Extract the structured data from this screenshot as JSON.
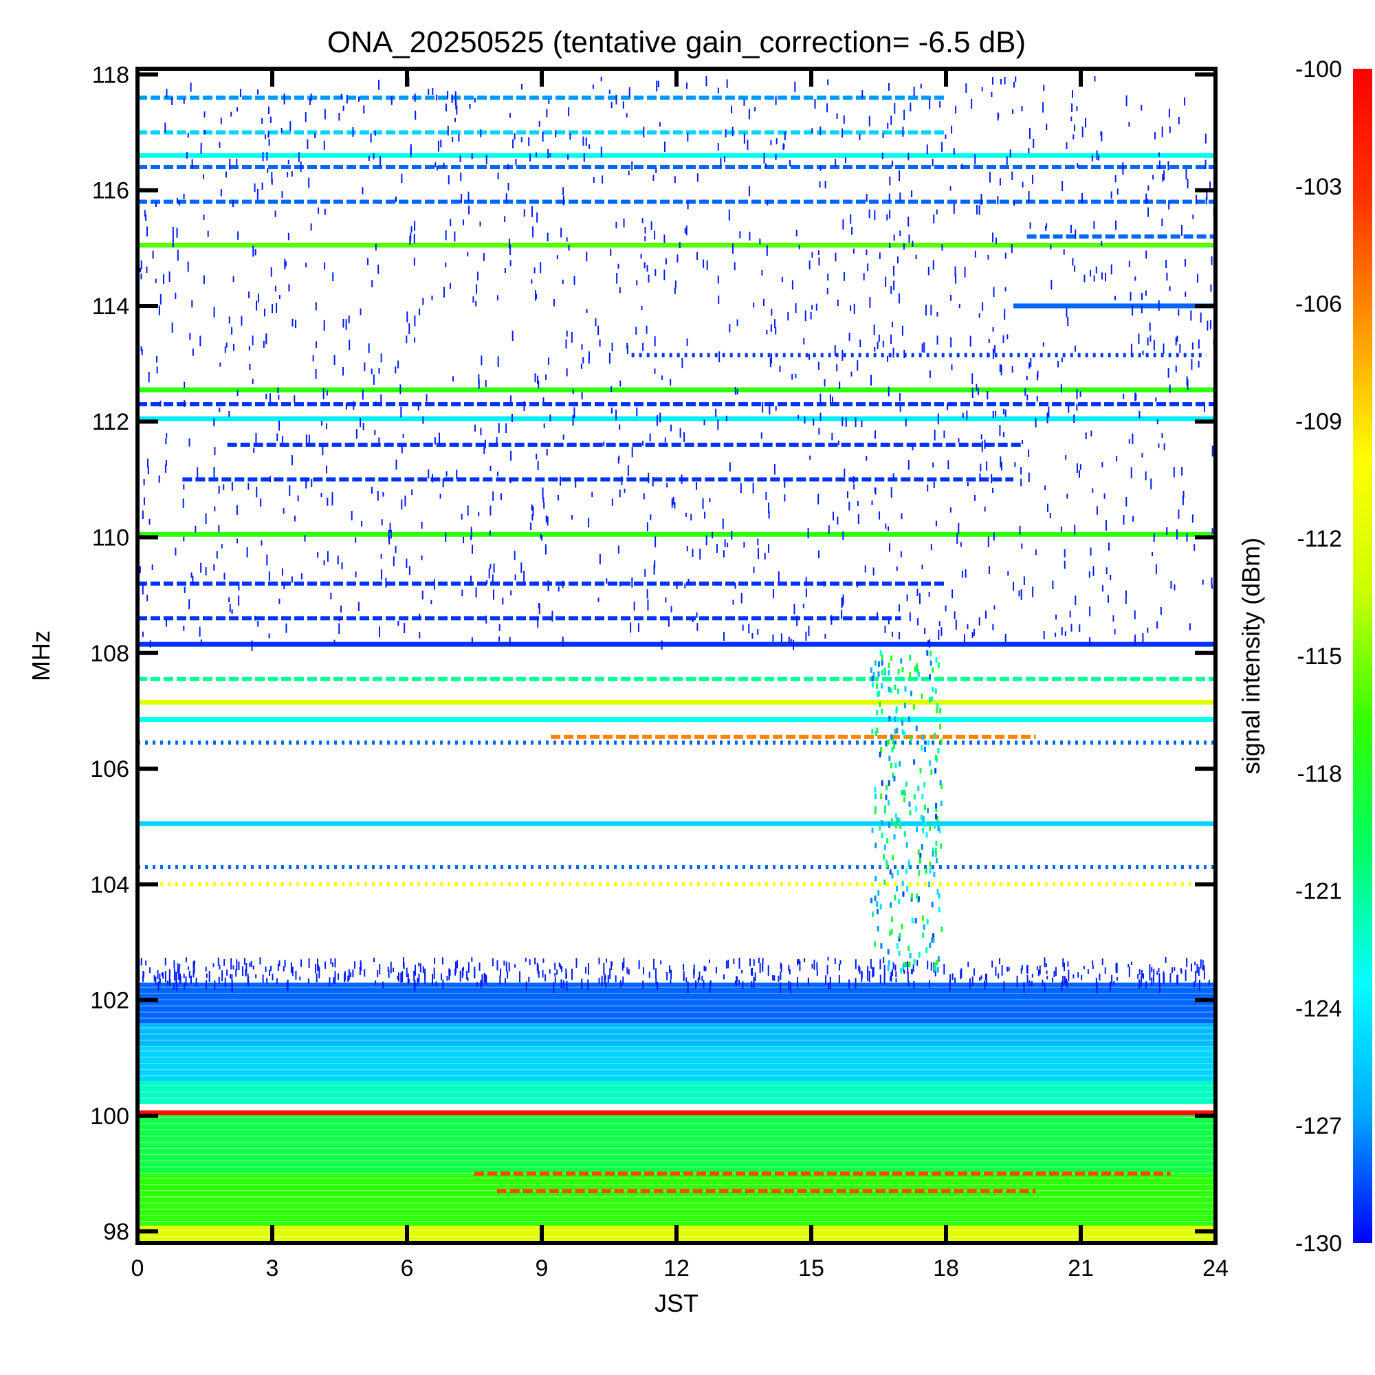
{
  "chart_data": {
    "type": "heatmap",
    "title": "ONA_20250525 (tentative gain_correction= -6.5 dB)",
    "xlabel": "JST",
    "ylabel": "MHz",
    "colorbar_label": "signal intensity (dBm)",
    "xlim": [
      0,
      24
    ],
    "ylim": [
      97.8,
      118.1
    ],
    "xticks": [
      0,
      3,
      6,
      9,
      12,
      15,
      18,
      21,
      24
    ],
    "xtick_labels": [
      "0",
      "3",
      "6",
      "9",
      "12",
      "15",
      "18",
      "21",
      "24"
    ],
    "yticks": [
      98,
      100,
      102,
      104,
      106,
      108,
      110,
      112,
      114,
      116,
      118
    ],
    "ytick_labels": [
      "98",
      "100",
      "102",
      "104",
      "106",
      "108",
      "110",
      "112",
      "114",
      "116",
      "118"
    ],
    "color_range": [
      -130,
      -100
    ],
    "colorbar_ticks": [
      -100,
      -103,
      -106,
      -109,
      -112,
      -115,
      -118,
      -121,
      -124,
      -127,
      -130
    ],
    "colorbar_tick_labels": [
      "-100",
      "-103",
      "-106",
      "-109",
      "-112",
      "-115",
      "-118",
      "-121",
      "-124",
      "-127",
      "-130"
    ],
    "colormap": [
      "#0000ff",
      "#00aaff",
      "#00ffff",
      "#00ff66",
      "#33ff00",
      "#ccff00",
      "#ffff00",
      "#ff9900",
      "#ff3300",
      "#ff0000"
    ],
    "background_level": -130,
    "bands": [
      {
        "f_start": 97.8,
        "f_end": 98.1,
        "level": -112,
        "pattern": "solid"
      },
      {
        "f_start": 98.1,
        "f_end": 99.0,
        "level": -117,
        "pattern": "solid"
      },
      {
        "f_start": 99.0,
        "f_end": 100.05,
        "level": -119,
        "pattern": "solid"
      },
      {
        "f_start": 100.2,
        "f_end": 100.6,
        "level": -122,
        "pattern": "solid"
      },
      {
        "f_start": 100.6,
        "f_end": 101.2,
        "level": -125,
        "pattern": "solid"
      },
      {
        "f_start": 101.2,
        "f_end": 101.6,
        "level": -126,
        "pattern": "solid"
      },
      {
        "f_start": 101.6,
        "f_end": 102.3,
        "level": -128,
        "pattern": "solid"
      }
    ],
    "lines": [
      {
        "freq": 100.05,
        "level": -101,
        "t_start": 0,
        "t_end": 24,
        "pattern": "solid"
      },
      {
        "freq": 99.0,
        "level": -104,
        "t_start": 7.5,
        "t_end": 23.0,
        "pattern": "dashed"
      },
      {
        "freq": 98.7,
        "level": -104,
        "t_start": 8.0,
        "t_end": 20.0,
        "pattern": "dashed"
      },
      {
        "freq": 104.0,
        "level": -110,
        "t_start": 0,
        "t_end": 24,
        "pattern": "dotted"
      },
      {
        "freq": 104.3,
        "level": -128,
        "t_start": 0,
        "t_end": 24,
        "pattern": "dotted"
      },
      {
        "freq": 105.05,
        "level": -125,
        "t_start": 0,
        "t_end": 24,
        "pattern": "solid"
      },
      {
        "freq": 106.45,
        "level": -128,
        "t_start": 0,
        "t_end": 24,
        "pattern": "dotted"
      },
      {
        "freq": 106.55,
        "level": -106,
        "t_start": 9.2,
        "t_end": 20.0,
        "pattern": "dashed"
      },
      {
        "freq": 106.85,
        "level": -123,
        "t_start": 0,
        "t_end": 24,
        "pattern": "solid"
      },
      {
        "freq": 107.15,
        "level": -112,
        "t_start": 0,
        "t_end": 24,
        "pattern": "solid"
      },
      {
        "freq": 107.55,
        "level": -121,
        "t_start": 0,
        "t_end": 24,
        "pattern": "dashed"
      },
      {
        "freq": 108.15,
        "level": -129,
        "t_start": 0,
        "t_end": 24,
        "pattern": "solid"
      },
      {
        "freq": 108.6,
        "level": -129,
        "t_start": 0,
        "t_end": 17.0,
        "pattern": "dashed"
      },
      {
        "freq": 109.2,
        "level": -129,
        "t_start": 0,
        "t_end": 18.0,
        "pattern": "dashed"
      },
      {
        "freq": 110.05,
        "level": -117,
        "t_start": 0,
        "t_end": 24,
        "pattern": "solid"
      },
      {
        "freq": 111.0,
        "level": -129,
        "t_start": 1.0,
        "t_end": 19.5,
        "pattern": "dashed"
      },
      {
        "freq": 111.6,
        "level": -129,
        "t_start": 2.0,
        "t_end": 19.7,
        "pattern": "dashed"
      },
      {
        "freq": 112.05,
        "level": -124,
        "t_start": 0,
        "t_end": 24,
        "pattern": "solid"
      },
      {
        "freq": 112.3,
        "level": -129,
        "t_start": 0,
        "t_end": 24,
        "pattern": "dashed"
      },
      {
        "freq": 112.55,
        "level": -117,
        "t_start": 0,
        "t_end": 24,
        "pattern": "solid"
      },
      {
        "freq": 113.15,
        "level": -129,
        "t_start": 11.0,
        "t_end": 23.8,
        "pattern": "dotted"
      },
      {
        "freq": 114.0,
        "level": -128,
        "t_start": 19.5,
        "t_end": 24,
        "pattern": "solid"
      },
      {
        "freq": 115.05,
        "level": -116,
        "t_start": 0,
        "t_end": 24,
        "pattern": "solid"
      },
      {
        "freq": 115.2,
        "level": -128,
        "t_start": 19.8,
        "t_end": 24,
        "pattern": "dashed"
      },
      {
        "freq": 115.8,
        "level": -128,
        "t_start": 0,
        "t_end": 24,
        "pattern": "dashed"
      },
      {
        "freq": 116.4,
        "level": -128,
        "t_start": 0,
        "t_end": 24,
        "pattern": "dashed"
      },
      {
        "freq": 116.6,
        "level": -123,
        "t_start": 0,
        "t_end": 24,
        "pattern": "solid"
      },
      {
        "freq": 117.0,
        "level": -125,
        "t_start": 0,
        "t_end": 18.0,
        "pattern": "dashed"
      },
      {
        "freq": 117.6,
        "level": -127,
        "t_start": 0,
        "t_end": 18.0,
        "pattern": "dashed"
      }
    ]
  }
}
